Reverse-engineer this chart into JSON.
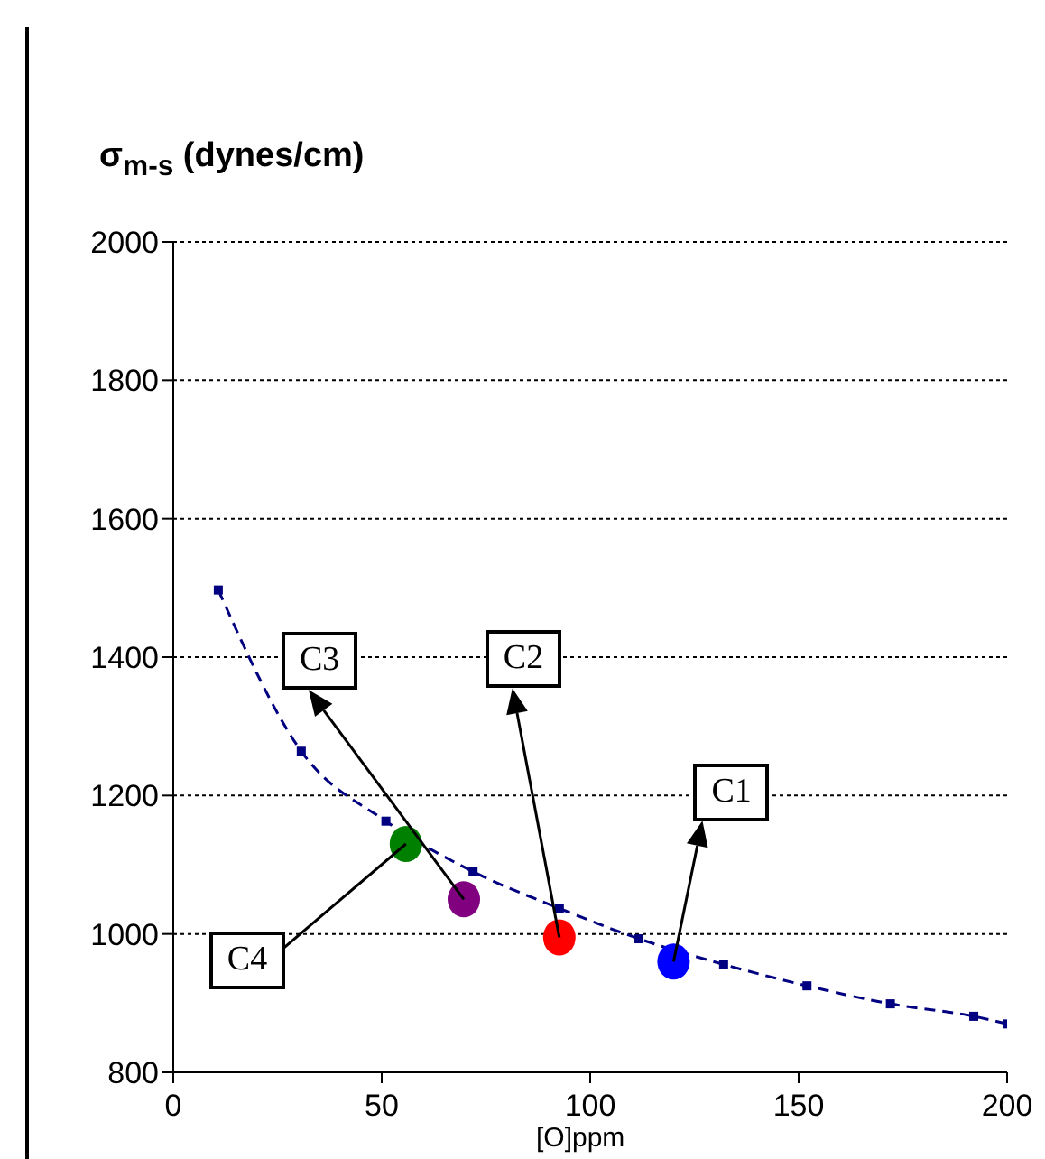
{
  "chart_data": {
    "type": "scatter",
    "xlabel": "[O]ppm",
    "ylabel": "σ$_{m-s}$ (dynes/cm)",
    "xlim": [
      0,
      200
    ],
    "xticks": [
      0,
      50,
      100,
      150,
      200
    ],
    "ylim": [
      800,
      2000
    ],
    "yticks": [
      800,
      1000,
      1200,
      1400,
      1600,
      1800,
      2000
    ],
    "grid": "y",
    "marker": "circle",
    "series": [
      {
        "x": [
          120,
          92.6,
          69.7,
          55.8
        ],
        "values": [
          960,
          995,
          1050,
          1130
        ],
        "colors": [
          "#0000ff",
          "#ff0000",
          "#800080",
          "#008000"
        ]
      },
      {
        "type": "line",
        "color": "#000080",
        "line_style": "dashed",
        "marker": "square",
        "x": [
          10.8,
          30.7,
          51,
          71.9,
          92.6,
          111.7,
          132,
          152,
          172,
          192,
          200
        ],
        "values": [
          1497,
          1264,
          1163,
          1090,
          1037,
          993,
          956,
          925,
          899,
          881,
          870
        ]
      }
    ],
    "annotations": [
      {
        "text": "C1",
        "x": 120,
        "y": 960
      },
      {
        "text": "C2",
        "x": 92.6,
        "y": 995
      },
      {
        "text": "C3",
        "x": 69.7,
        "y": 1050
      },
      {
        "text": "C4",
        "x": 55.8,
        "y": 1130
      }
    ]
  }
}
